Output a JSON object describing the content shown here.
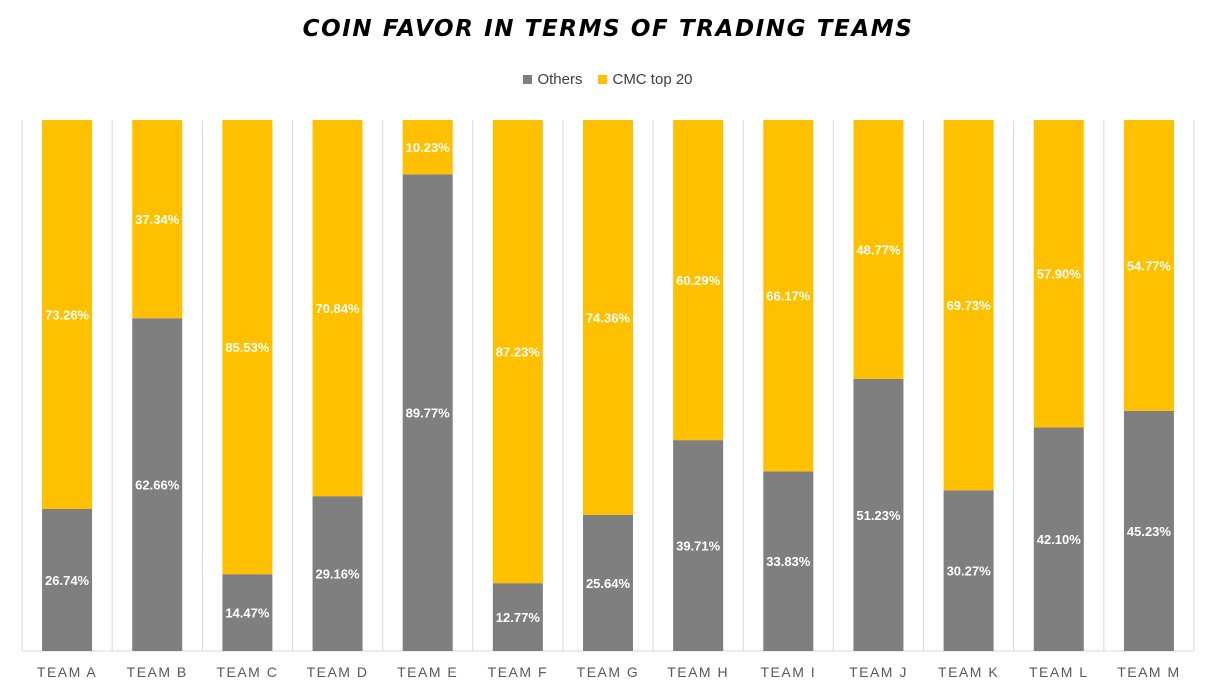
{
  "chart_data": {
    "type": "bar",
    "stacked": true,
    "percent_stacked": true,
    "title": "COIN FAVOR IN TERMS OF TRADING TEAMS",
    "xlabel": "",
    "ylabel": "",
    "ylim": [
      0,
      100
    ],
    "grid": false,
    "legend_position": "top",
    "categories": [
      "TEAM A",
      "TEAM B",
      "TEAM C",
      "TEAM D",
      "TEAM E",
      "TEAM F",
      "TEAM G",
      "TEAM H",
      "TEAM I",
      "TEAM J",
      "TEAM K",
      "TEAM L",
      "TEAM M"
    ],
    "series": [
      {
        "name": "Others",
        "color": "#7f7f7f",
        "values": [
          26.74,
          62.66,
          14.47,
          29.16,
          89.77,
          12.77,
          25.64,
          39.71,
          33.83,
          51.23,
          30.27,
          42.1,
          45.23
        ],
        "labels": [
          "26.74%",
          "62.66%",
          "14.47%",
          "29.16%",
          "89.77%",
          "12.77%",
          "25.64%",
          "39.71%",
          "33.83%",
          "51.23%",
          "30.27%",
          "42.10%",
          "45.23%"
        ]
      },
      {
        "name": "CMC top 20",
        "color": "#ffc000",
        "values": [
          73.26,
          37.34,
          85.53,
          70.84,
          10.23,
          87.23,
          74.36,
          60.29,
          66.17,
          48.77,
          69.73,
          57.9,
          54.77
        ],
        "labels": [
          "73.26%",
          "37.34%",
          "85.53%",
          "70.84%",
          "10.23%",
          "87.23%",
          "74.36%",
          "60.29%",
          "66.17%",
          "48.77%",
          "69.73%",
          "57.90%",
          "54.77%"
        ]
      }
    ]
  }
}
